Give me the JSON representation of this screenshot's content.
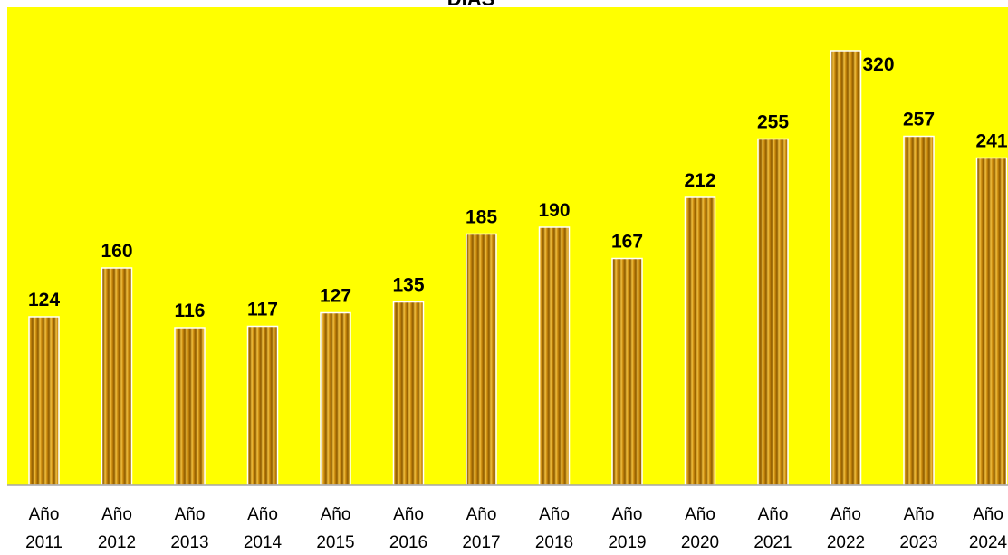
{
  "chart_data": {
    "type": "bar",
    "title": "DIAS",
    "categories": [
      "Año 2011",
      "Año 2012",
      "Año 2013",
      "Año 2014",
      "Año 2015",
      "Año 2016",
      "Año 2017",
      "Año 2018",
      "Año 2019",
      "Año 2020",
      "Año 2021",
      "Año 2022",
      "Año 2023",
      "Año 2024"
    ],
    "category_lines": [
      [
        "Año",
        "2011"
      ],
      [
        "Año",
        "2012"
      ],
      [
        "Año",
        "2013"
      ],
      [
        "Año",
        "2014"
      ],
      [
        "Año",
        "2015"
      ],
      [
        "Año",
        "2016"
      ],
      [
        "Año",
        "2017"
      ],
      [
        "Año",
        "2018"
      ],
      [
        "Año",
        "2019"
      ],
      [
        "Año",
        "2020"
      ],
      [
        "Año",
        "2021"
      ],
      [
        "Año",
        "2022"
      ],
      [
        "Año",
        "2023"
      ],
      [
        "Año",
        "2024"
      ]
    ],
    "values": [
      124,
      160,
      116,
      117,
      127,
      135,
      185,
      190,
      167,
      212,
      255,
      320,
      257,
      241
    ],
    "data_labels": [
      "124",
      "160",
      "116",
      "117",
      "127",
      "135",
      "185",
      "190",
      "167",
      "212",
      "255",
      "320",
      "257",
      "241"
    ],
    "xlabel": "",
    "ylabel": "",
    "ylim": [
      0,
      340
    ],
    "grid": false,
    "legend": "none",
    "colors": {
      "plot_background": "#FFFF00",
      "page_background": "#FFFFFF",
      "bar_fill": "#C8860A",
      "bar_stripe": "#8B5A00",
      "bar_highlight": "#F0C040",
      "bar_outline": "#FFFFFF",
      "axis_line": "#A6A6A6"
    }
  }
}
